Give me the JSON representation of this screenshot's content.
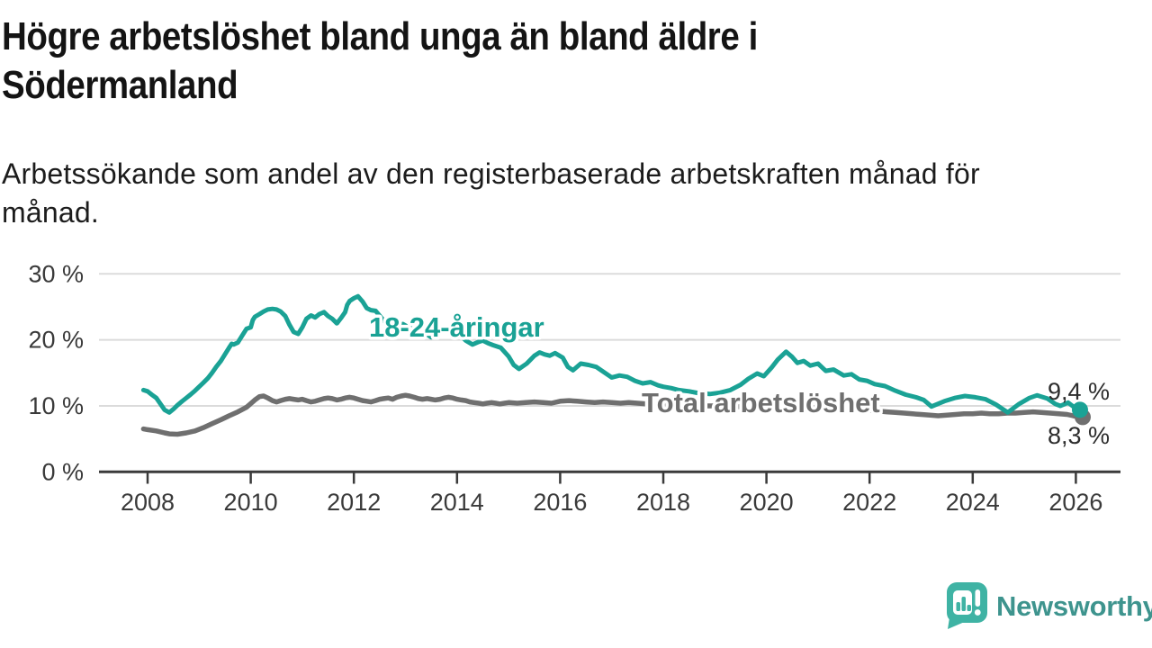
{
  "header": {
    "title": "Högre arbetslöshet bland unga än bland äldre i\nSödermanland",
    "subtitle": "Arbetssökande som andel av den registerbaserade arbetskraften månad för\nmånad."
  },
  "footer": {
    "brand": "Newsworthy"
  },
  "colors": {
    "youth_line": "#1AA295",
    "total_line": "#6F6F6F",
    "grid": "#DBDBDB",
    "axis": "#3A3A3A",
    "end_label_text": "#2D2D2D",
    "brand_text": "#3E948E",
    "brand_bubble": "#3FB3A4"
  },
  "chart_data": {
    "type": "line",
    "title": "Högre arbetslöshet bland unga än bland äldre i Södermanland",
    "xlabel": "",
    "ylabel": "",
    "x_ticks": [
      2008,
      2010,
      2012,
      2014,
      2016,
      2018,
      2020,
      2022,
      2024,
      2026
    ],
    "y_ticks": [
      {
        "value": 0,
        "label": "0 %"
      },
      {
        "value": 10,
        "label": "10 %"
      },
      {
        "value": 20,
        "label": "20 %"
      },
      {
        "value": 30,
        "label": "30 %"
      }
    ],
    "x_range": [
      2007.8,
      2026.4
    ],
    "ylim": [
      0,
      30
    ],
    "grid": "horizontal",
    "legend_position": "inline-labels",
    "series": [
      {
        "id": "total",
        "name": "Total arbetslöshet",
        "color": "#6F6F6F",
        "end_label": "8,3 %",
        "end_value": 8.3,
        "points": [
          [
            2007.92,
            6.5
          ],
          [
            2008.0,
            6.4
          ],
          [
            2008.17,
            6.2
          ],
          [
            2008.33,
            5.9
          ],
          [
            2008.42,
            5.75
          ],
          [
            2008.58,
            5.7
          ],
          [
            2008.75,
            5.9
          ],
          [
            2008.92,
            6.2
          ],
          [
            2009.08,
            6.7
          ],
          [
            2009.25,
            7.3
          ],
          [
            2009.42,
            7.9
          ],
          [
            2009.58,
            8.5
          ],
          [
            2009.75,
            9.1
          ],
          [
            2009.92,
            9.8
          ],
          [
            2010.08,
            10.9
          ],
          [
            2010.17,
            11.4
          ],
          [
            2010.25,
            11.5
          ],
          [
            2010.33,
            11.2
          ],
          [
            2010.42,
            10.8
          ],
          [
            2010.5,
            10.6
          ],
          [
            2010.58,
            10.8
          ],
          [
            2010.67,
            11.0
          ],
          [
            2010.75,
            11.1
          ],
          [
            2010.83,
            11.0
          ],
          [
            2010.92,
            10.9
          ],
          [
            2011.0,
            11.0
          ],
          [
            2011.08,
            10.8
          ],
          [
            2011.17,
            10.6
          ],
          [
            2011.25,
            10.7
          ],
          [
            2011.33,
            10.9
          ],
          [
            2011.42,
            11.1
          ],
          [
            2011.5,
            11.2
          ],
          [
            2011.58,
            11.1
          ],
          [
            2011.67,
            10.9
          ],
          [
            2011.75,
            11.0
          ],
          [
            2011.83,
            11.2
          ],
          [
            2011.92,
            11.3
          ],
          [
            2012.0,
            11.2
          ],
          [
            2012.08,
            11.0
          ],
          [
            2012.17,
            10.8
          ],
          [
            2012.25,
            10.7
          ],
          [
            2012.33,
            10.6
          ],
          [
            2012.42,
            10.8
          ],
          [
            2012.5,
            11.0
          ],
          [
            2012.58,
            11.1
          ],
          [
            2012.67,
            11.2
          ],
          [
            2012.75,
            11.0
          ],
          [
            2012.83,
            11.3
          ],
          [
            2012.92,
            11.5
          ],
          [
            2013.0,
            11.6
          ],
          [
            2013.08,
            11.5
          ],
          [
            2013.17,
            11.3
          ],
          [
            2013.25,
            11.1
          ],
          [
            2013.33,
            11.0
          ],
          [
            2013.42,
            11.1
          ],
          [
            2013.5,
            11.0
          ],
          [
            2013.58,
            10.9
          ],
          [
            2013.67,
            11.0
          ],
          [
            2013.75,
            11.2
          ],
          [
            2013.83,
            11.3
          ],
          [
            2013.92,
            11.2
          ],
          [
            2014.0,
            11.0
          ],
          [
            2014.08,
            10.9
          ],
          [
            2014.17,
            10.8
          ],
          [
            2014.25,
            10.6
          ],
          [
            2014.33,
            10.5
          ],
          [
            2014.42,
            10.4
          ],
          [
            2014.5,
            10.3
          ],
          [
            2014.58,
            10.4
          ],
          [
            2014.67,
            10.5
          ],
          [
            2014.75,
            10.4
          ],
          [
            2014.83,
            10.3
          ],
          [
            2014.92,
            10.4
          ],
          [
            2015.0,
            10.5
          ],
          [
            2015.17,
            10.4
          ],
          [
            2015.33,
            10.5
          ],
          [
            2015.5,
            10.6
          ],
          [
            2015.67,
            10.5
          ],
          [
            2015.83,
            10.4
          ],
          [
            2016.0,
            10.7
          ],
          [
            2016.17,
            10.8
          ],
          [
            2016.33,
            10.7
          ],
          [
            2016.5,
            10.6
          ],
          [
            2016.67,
            10.5
          ],
          [
            2016.83,
            10.6
          ],
          [
            2017.0,
            10.5
          ],
          [
            2017.17,
            10.4
          ],
          [
            2017.33,
            10.5
          ],
          [
            2017.5,
            10.4
          ],
          [
            2017.67,
            10.3
          ],
          [
            2017.83,
            10.2
          ],
          [
            2018.0,
            10.1
          ],
          [
            2018.17,
            10.2
          ],
          [
            2018.33,
            10.1
          ],
          [
            2018.5,
            10.0
          ],
          [
            2018.67,
            9.9
          ],
          [
            2018.83,
            10.0
          ],
          [
            2019.0,
            10.0
          ],
          [
            2019.17,
            9.9
          ],
          [
            2019.33,
            9.8
          ],
          [
            2019.5,
            9.9
          ],
          [
            2019.67,
            9.8
          ],
          [
            2019.83,
            9.8
          ],
          [
            2020.0,
            9.9
          ],
          [
            2020.17,
            10.0
          ],
          [
            2020.33,
            10.1
          ],
          [
            2020.5,
            10.0
          ],
          [
            2020.67,
            9.9
          ],
          [
            2020.83,
            9.8
          ],
          [
            2021.0,
            9.7
          ],
          [
            2021.17,
            9.6
          ],
          [
            2021.33,
            9.5
          ],
          [
            2021.5,
            9.4
          ],
          [
            2021.67,
            9.4
          ],
          [
            2021.83,
            9.3
          ],
          [
            2022.0,
            9.3
          ],
          [
            2022.17,
            9.2
          ],
          [
            2022.33,
            9.1
          ],
          [
            2022.5,
            9.0
          ],
          [
            2022.67,
            8.9
          ],
          [
            2022.83,
            8.8
          ],
          [
            2023.0,
            8.7
          ],
          [
            2023.17,
            8.6
          ],
          [
            2023.33,
            8.5
          ],
          [
            2023.5,
            8.6
          ],
          [
            2023.67,
            8.7
          ],
          [
            2023.83,
            8.8
          ],
          [
            2024.0,
            8.8
          ],
          [
            2024.17,
            8.9
          ],
          [
            2024.33,
            8.8
          ],
          [
            2024.5,
            8.8
          ],
          [
            2024.67,
            8.9
          ],
          [
            2024.83,
            8.9
          ],
          [
            2025.0,
            9.0
          ],
          [
            2025.17,
            9.1
          ],
          [
            2025.33,
            9.0
          ],
          [
            2025.5,
            8.9
          ],
          [
            2025.67,
            8.8
          ],
          [
            2025.83,
            8.7
          ],
          [
            2025.95,
            8.5
          ],
          [
            2026.08,
            8.3
          ]
        ]
      },
      {
        "id": "youth",
        "name": "18-24-åringar",
        "color": "#1AA295",
        "end_label": "9,4 %",
        "end_value": 9.4,
        "points": [
          [
            2007.92,
            12.4
          ],
          [
            2008.0,
            12.2
          ],
          [
            2008.08,
            11.7
          ],
          [
            2008.17,
            11.2
          ],
          [
            2008.25,
            10.3
          ],
          [
            2008.33,
            9.4
          ],
          [
            2008.42,
            9.0
          ],
          [
            2008.5,
            9.5
          ],
          [
            2008.58,
            10.1
          ],
          [
            2008.67,
            10.7
          ],
          [
            2008.75,
            11.2
          ],
          [
            2008.83,
            11.7
          ],
          [
            2008.92,
            12.3
          ],
          [
            2009.0,
            12.9
          ],
          [
            2009.08,
            13.5
          ],
          [
            2009.17,
            14.2
          ],
          [
            2009.25,
            15.0
          ],
          [
            2009.33,
            15.9
          ],
          [
            2009.42,
            16.8
          ],
          [
            2009.5,
            17.8
          ],
          [
            2009.58,
            18.8
          ],
          [
            2009.63,
            19.4
          ],
          [
            2009.67,
            19.3
          ],
          [
            2009.75,
            19.6
          ],
          [
            2009.83,
            20.6
          ],
          [
            2009.92,
            21.7
          ],
          [
            2010.0,
            21.9
          ],
          [
            2010.04,
            23.0
          ],
          [
            2010.08,
            23.5
          ],
          [
            2010.17,
            23.9
          ],
          [
            2010.25,
            24.3
          ],
          [
            2010.33,
            24.6
          ],
          [
            2010.42,
            24.7
          ],
          [
            2010.5,
            24.6
          ],
          [
            2010.58,
            24.3
          ],
          [
            2010.67,
            23.6
          ],
          [
            2010.75,
            22.3
          ],
          [
            2010.83,
            21.2
          ],
          [
            2010.92,
            20.9
          ],
          [
            2011.0,
            21.9
          ],
          [
            2011.08,
            23.2
          ],
          [
            2011.17,
            23.7
          ],
          [
            2011.25,
            23.4
          ],
          [
            2011.33,
            23.9
          ],
          [
            2011.42,
            24.2
          ],
          [
            2011.5,
            23.6
          ],
          [
            2011.58,
            23.2
          ],
          [
            2011.67,
            22.5
          ],
          [
            2011.75,
            23.3
          ],
          [
            2011.83,
            24.2
          ],
          [
            2011.87,
            25.3
          ],
          [
            2011.92,
            25.9
          ],
          [
            2012.0,
            26.3
          ],
          [
            2012.08,
            26.6
          ],
          [
            2012.17,
            25.8
          ],
          [
            2012.25,
            24.8
          ],
          [
            2012.33,
            24.5
          ],
          [
            2012.42,
            24.4
          ],
          [
            2012.55,
            23.2
          ],
          [
            2012.67,
            22.0
          ],
          [
            2012.75,
            21.2
          ],
          [
            2012.85,
            21.8
          ],
          [
            2012.95,
            22.4
          ],
          [
            2013.08,
            21.8
          ],
          [
            2013.25,
            21.4
          ],
          [
            2013.42,
            20.8
          ],
          [
            2013.5,
            20.4
          ],
          [
            2013.67,
            21.2
          ],
          [
            2013.85,
            21.5
          ],
          [
            2014.0,
            21.2
          ],
          [
            2014.08,
            20.6
          ],
          [
            2014.17,
            19.9
          ],
          [
            2014.3,
            19.3
          ],
          [
            2014.42,
            19.7
          ],
          [
            2014.5,
            19.9
          ],
          [
            2014.6,
            19.5
          ],
          [
            2014.7,
            19.2
          ],
          [
            2014.85,
            18.8
          ],
          [
            2015.0,
            17.5
          ],
          [
            2015.1,
            16.2
          ],
          [
            2015.2,
            15.6
          ],
          [
            2015.35,
            16.4
          ],
          [
            2015.5,
            17.6
          ],
          [
            2015.6,
            18.1
          ],
          [
            2015.7,
            17.8
          ],
          [
            2015.8,
            17.6
          ],
          [
            2015.9,
            18.0
          ],
          [
            2016.05,
            17.3
          ],
          [
            2016.15,
            15.9
          ],
          [
            2016.25,
            15.4
          ],
          [
            2016.4,
            16.4
          ],
          [
            2016.55,
            16.2
          ],
          [
            2016.7,
            15.9
          ],
          [
            2016.85,
            15.1
          ],
          [
            2017.0,
            14.3
          ],
          [
            2017.15,
            14.6
          ],
          [
            2017.3,
            14.4
          ],
          [
            2017.45,
            13.8
          ],
          [
            2017.6,
            13.4
          ],
          [
            2017.75,
            13.6
          ],
          [
            2017.9,
            13.1
          ],
          [
            2018.0,
            12.9
          ],
          [
            2018.15,
            12.7
          ],
          [
            2018.3,
            12.4
          ],
          [
            2018.5,
            12.2
          ],
          [
            2018.7,
            11.9
          ],
          [
            2018.9,
            11.8
          ],
          [
            2019.1,
            12.0
          ],
          [
            2019.3,
            12.4
          ],
          [
            2019.5,
            13.2
          ],
          [
            2019.65,
            14.1
          ],
          [
            2019.82,
            14.9
          ],
          [
            2019.95,
            14.5
          ],
          [
            2020.1,
            15.8
          ],
          [
            2020.22,
            17.0
          ],
          [
            2020.38,
            18.2
          ],
          [
            2020.5,
            17.4
          ],
          [
            2020.6,
            16.5
          ],
          [
            2020.72,
            16.8
          ],
          [
            2020.85,
            16.1
          ],
          [
            2021.0,
            16.4
          ],
          [
            2021.15,
            15.3
          ],
          [
            2021.3,
            15.5
          ],
          [
            2021.5,
            14.6
          ],
          [
            2021.65,
            14.8
          ],
          [
            2021.8,
            14.0
          ],
          [
            2021.95,
            13.8
          ],
          [
            2022.1,
            13.3
          ],
          [
            2022.3,
            13.0
          ],
          [
            2022.5,
            12.3
          ],
          [
            2022.7,
            11.7
          ],
          [
            2022.9,
            11.3
          ],
          [
            2023.05,
            10.9
          ],
          [
            2023.2,
            9.9
          ],
          [
            2023.45,
            10.7
          ],
          [
            2023.65,
            11.2
          ],
          [
            2023.85,
            11.5
          ],
          [
            2024.05,
            11.3
          ],
          [
            2024.25,
            11.0
          ],
          [
            2024.45,
            10.2
          ],
          [
            2024.68,
            9.0
          ],
          [
            2024.9,
            10.3
          ],
          [
            2025.1,
            11.2
          ],
          [
            2025.25,
            11.6
          ],
          [
            2025.45,
            11.1
          ],
          [
            2025.6,
            10.3
          ],
          [
            2025.7,
            10.0
          ],
          [
            2025.85,
            10.5
          ],
          [
            2025.95,
            9.9
          ],
          [
            2026.08,
            9.4
          ]
        ]
      }
    ]
  }
}
